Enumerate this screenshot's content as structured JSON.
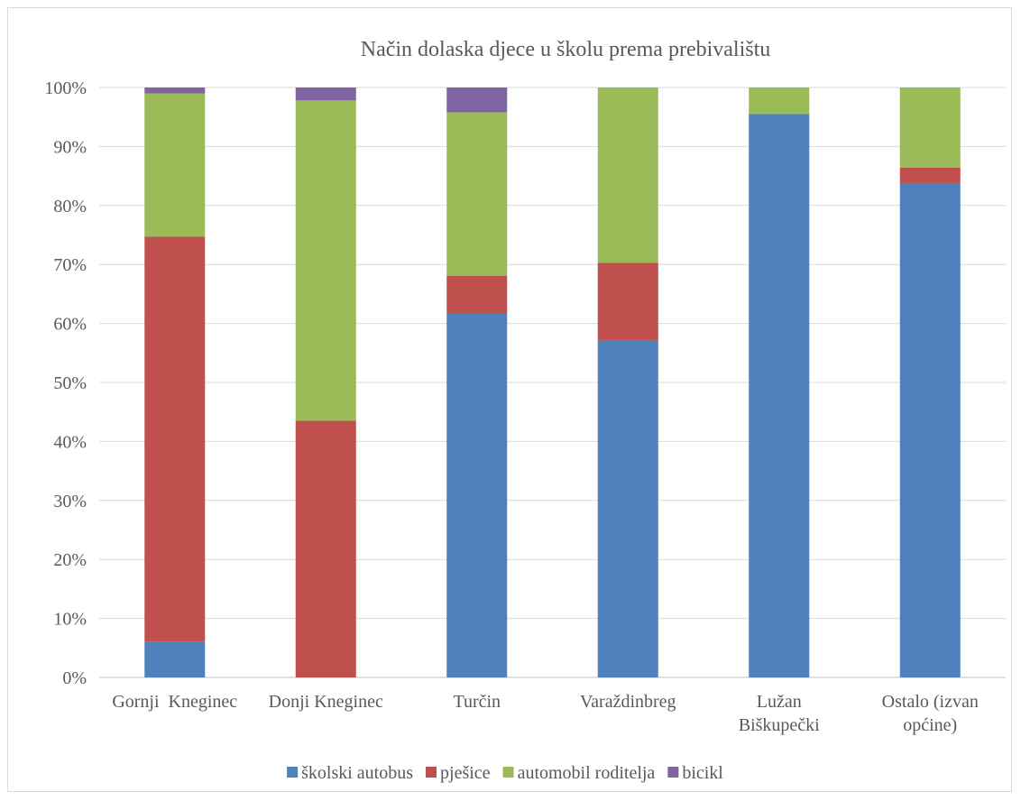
{
  "chart_data": {
    "type": "bar",
    "stacked": true,
    "percent": true,
    "title": "Način dolaska djece u školu prema prebivalištu",
    "xlabel": "",
    "ylabel": "",
    "ylim": [
      0,
      100
    ],
    "y_ticks": [
      "0%",
      "10%",
      "20%",
      "30%",
      "40%",
      "50%",
      "60%",
      "70%",
      "80%",
      "90%",
      "100%"
    ],
    "grid": true,
    "legend_position": "bottom",
    "categories": [
      [
        "Gornji  Kneginec"
      ],
      [
        "Donji Kneginec"
      ],
      [
        "Turčin"
      ],
      [
        "Varaždinbreg"
      ],
      [
        "Lužan",
        "Biškupečki"
      ],
      [
        "Ostalo (izvan",
        "općine)"
      ]
    ],
    "series": [
      {
        "name": "školski autobus",
        "color": "#4f81bd",
        "values": [
          6,
          0,
          61.7,
          57.2,
          95.5,
          83.8
        ]
      },
      {
        "name": "pješice",
        "color": "#c0504d",
        "values": [
          68.7,
          43.5,
          6.4,
          13.1,
          0,
          2.6
        ]
      },
      {
        "name": "automobil roditelja",
        "color": "#9bbb59",
        "values": [
          24.3,
          54.3,
          27.7,
          29.7,
          4.5,
          13.6
        ]
      },
      {
        "name": "bicikl",
        "color": "#8064a2",
        "values": [
          1,
          2.2,
          4.2,
          0,
          0,
          0
        ]
      }
    ]
  }
}
